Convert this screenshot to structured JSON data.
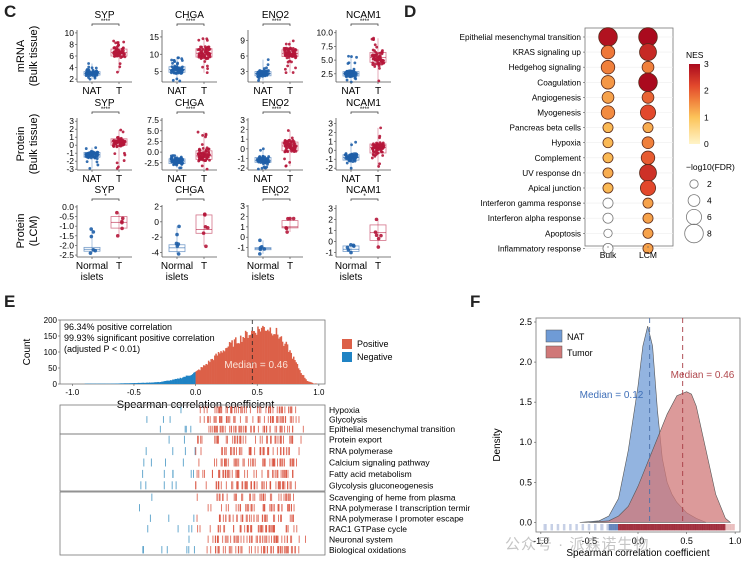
{
  "panels": {
    "c": "C",
    "d": "D",
    "e": "E",
    "f": "F"
  },
  "watermark": "公众号 · 派森诺生物",
  "chart_data": [
    {
      "id": "C",
      "type": "boxplot",
      "rows": [
        {
          "ylabel": [
            "mRNA",
            "(Bulk tissue)"
          ],
          "groups": [
            "NAT",
            "T"
          ],
          "panels": [
            {
              "title": "SYP",
              "sig": "****",
              "ylim": [
                1.5,
                10.5
              ],
              "ticks": [
                2,
                4,
                6,
                8,
                10
              ],
              "boxes": [
                {
                  "q1": 2.7,
                  "med": 3.0,
                  "q3": 3.3,
                  "lo": 2.0,
                  "hi": 4.7
                },
                {
                  "q1": 6.0,
                  "med": 6.6,
                  "q3": 7.2,
                  "lo": 3.2,
                  "hi": 8.6
                }
              ]
            },
            {
              "title": "CHGA",
              "sig": "****",
              "ylim": [
                2,
                17
              ],
              "ticks": [
                5,
                10,
                15
              ],
              "boxes": [
                {
                  "q1": 4.8,
                  "med": 5.6,
                  "q3": 6.4,
                  "lo": 2.3,
                  "hi": 9.0
                },
                {
                  "q1": 9.2,
                  "med": 10.3,
                  "q3": 11.6,
                  "lo": 4.7,
                  "hi": 14.5
                }
              ]
            },
            {
              "title": "ENO2",
              "sig": "****",
              "ylim": [
                1,
                11
              ],
              "ticks": [
                3,
                6,
                9
              ],
              "boxes": [
                {
                  "q1": 2.2,
                  "med": 2.6,
                  "q3": 3.0,
                  "lo": 1.3,
                  "hi": 5.3
                },
                {
                  "q1": 5.9,
                  "med": 6.5,
                  "q3": 7.2,
                  "lo": 2.8,
                  "hi": 8.9
                }
              ]
            },
            {
              "title": "NCAM1",
              "sig": "****",
              "ylim": [
                1,
                10.5
              ],
              "ticks": [
                2.5,
                5.0,
                7.5,
                10.0
              ],
              "boxes": [
                {
                  "q1": 2.1,
                  "med": 2.5,
                  "q3": 2.9,
                  "lo": 1.0,
                  "hi": 5.7
                },
                {
                  "q1": 4.6,
                  "med": 5.5,
                  "q3": 6.4,
                  "lo": 1.2,
                  "hi": 9.0
                }
              ]
            }
          ]
        },
        {
          "ylabel": [
            "Protein",
            "(Bulk tissue)"
          ],
          "groups": [
            "NAT",
            "T"
          ],
          "panels": [
            {
              "title": "SYP",
              "sig": "****",
              "ylim": [
                -3.1,
                3.4
              ],
              "ticks": [
                -3,
                -2,
                -1,
                0,
                1,
                2,
                3
              ],
              "boxes": [
                {
                  "q1": -1.5,
                  "med": -1.2,
                  "q3": -0.9,
                  "lo": -2.9,
                  "hi": -0.3
                },
                {
                  "q1": 0.0,
                  "med": 0.4,
                  "q3": 0.8,
                  "lo": -2.9,
                  "hi": 1.9
                }
              ]
            },
            {
              "title": "CHGA",
              "sig": "****",
              "ylim": [
                -4.2,
                8
              ],
              "ticks": [
                -2.5,
                0.0,
                2.5,
                5.0,
                7.5
              ],
              "boxes": [
                {
                  "q1": -2.7,
                  "med": -2.1,
                  "q3": -1.6,
                  "lo": -3.7,
                  "hi": -0.8
                },
                {
                  "q1": -1.7,
                  "med": -0.9,
                  "q3": 0.3,
                  "lo": -4.0,
                  "hi": 4.7
                }
              ]
            },
            {
              "title": "ENO2",
              "sig": "****",
              "ylim": [
                -2.2,
                3.2
              ],
              "ticks": [
                -2,
                -1,
                0,
                1,
                2,
                3
              ],
              "boxes": [
                {
                  "q1": -1.4,
                  "med": -1.2,
                  "q3": -0.9,
                  "lo": -2.1,
                  "hi": 0.0
                },
                {
                  "q1": -0.2,
                  "med": 0.3,
                  "q3": 0.7,
                  "lo": -1.8,
                  "hi": 1.9
                }
              ]
            },
            {
              "title": "NCAM1",
              "sig": "****",
              "ylim": [
                -2.2,
                3.6
              ],
              "ticks": [
                -2,
                -1,
                0,
                1,
                2,
                3
              ],
              "boxes": [
                {
                  "q1": -1.1,
                  "med": -0.8,
                  "q3": -0.5,
                  "lo": -2.0,
                  "hi": 0.9
                },
                {
                  "q1": -0.3,
                  "med": 0.3,
                  "q3": 0.7,
                  "lo": -1.8,
                  "hi": 2.5
                }
              ]
            }
          ]
        },
        {
          "ylabel": [
            "Protein",
            "(LCM)"
          ],
          "groups": [
            "Normal\nislets",
            "T"
          ],
          "panels": [
            {
              "title": "SYP",
              "sig": "*",
              "ylim": [
                -2.6,
                0.1
              ],
              "ticks": [
                -2.5,
                -2.0,
                -1.5,
                -1.0,
                -0.5,
                0.0
              ],
              "boxes": [
                {
                  "q1": -2.3,
                  "med": -2.2,
                  "q3": -2.1,
                  "lo": -2.4,
                  "hi": -1.15
                },
                {
                  "q1": -1.1,
                  "med": -0.8,
                  "q3": -0.5,
                  "lo": -1.5,
                  "hi": -0.3
                }
              ]
            },
            {
              "title": "CHGA",
              "sig": "*",
              "ylim": [
                -4.6,
                2.2
              ],
              "ticks": [
                -4,
                -2,
                0,
                2
              ],
              "boxes": [
                {
                  "q1": -3.9,
                  "med": -3.4,
                  "q3": -3.0,
                  "lo": -4.2,
                  "hi": -0.6
                },
                {
                  "q1": -1.5,
                  "med": -1.0,
                  "q3": 0.9,
                  "lo": -3.2,
                  "hi": 1.0
                }
              ]
            },
            {
              "title": "ENO2",
              "sig": "**",
              "ylim": [
                -1.9,
                3.1
              ],
              "ticks": [
                -1,
                0,
                1,
                2,
                3
              ],
              "boxes": [
                {
                  "q1": -1.2,
                  "med": -1.1,
                  "q3": -1.0,
                  "lo": -1.6,
                  "hi": -0.3
                },
                {
                  "q1": 0.9,
                  "med": 1.0,
                  "q3": 1.6,
                  "lo": 0.5,
                  "hi": 1.8
                }
              ]
            },
            {
              "title": "NCAM1",
              "sig": "*",
              "ylim": [
                -1.4,
                3.3
              ],
              "ticks": [
                -1,
                0,
                1,
                2,
                3
              ],
              "boxes": [
                {
                  "q1": -0.9,
                  "med": -0.7,
                  "q3": -0.4,
                  "lo": -1.0,
                  "hi": -0.3
                },
                {
                  "q1": 0.1,
                  "med": 0.8,
                  "q3": 1.5,
                  "lo": -0.5,
                  "hi": 2.0
                }
              ]
            }
          ]
        }
      ],
      "colors": {
        "nat": "#1f5fa8",
        "t": "#b5163a"
      }
    },
    {
      "id": "D",
      "type": "dot",
      "categories": [
        "Epithelial mesenchymal transition",
        "KRAS signaling up",
        "Hedgehog signaling",
        "Coagulation",
        "Angiogenesis",
        "Myogenesis",
        "Pancreas beta cells",
        "Hypoxia",
        "Complement",
        "UV response dn",
        "Apical junction",
        "Interferon gamma response",
        "Interferon alpha response",
        "Apoptosis",
        "Inflammatory response"
      ],
      "columns": [
        "Bulk",
        "LCM"
      ],
      "nes": {
        "Bulk": [
          2.9,
          1.7,
          1.6,
          1.4,
          1.3,
          1.5,
          1.1,
          1.1,
          1.1,
          1.2,
          1.1,
          null,
          null,
          null,
          null
        ],
        "LCM": [
          3.0,
          2.6,
          1.6,
          3.0,
          1.9,
          2.2,
          1.2,
          1.6,
          2.0,
          2.5,
          2.2,
          1.3,
          1.3,
          1.3,
          1.3
        ]
      },
      "fdr": {
        "Bulk": [
          8,
          5,
          5,
          5,
          4,
          5,
          3,
          3,
          3,
          3,
          3,
          3,
          3,
          2,
          3
        ],
        "LCM": [
          8,
          7,
          4,
          8,
          4,
          6,
          3,
          4,
          5,
          7,
          6,
          3,
          3,
          3,
          3
        ]
      },
      "legend": {
        "nes_title": "NES",
        "nes_ticks": [
          0,
          1,
          2,
          3
        ],
        "nes_range": [
          0,
          3
        ],
        "fdr_title": "−log10(FDR)",
        "fdr_sizes": [
          2,
          4,
          6,
          8
        ]
      }
    },
    {
      "id": "E",
      "type": "histogram",
      "xlabel": "Spearman correlation coefficient",
      "ylabel": "Count",
      "xlim": [
        -1.1,
        1.05
      ],
      "ylim": [
        0,
        200
      ],
      "xticks": [
        -1.0,
        -0.5,
        0.0,
        0.5,
        1.0
      ],
      "yticks": [
        0,
        50,
        100,
        150,
        200
      ],
      "annotations": [
        "96.34% positive correlation",
        "99.93% significant positive correlation",
        "(adjusted P < 0.01)"
      ],
      "median_label": "Median = 0.46",
      "median": 0.46,
      "legend": [
        {
          "name": "Positive",
          "color": "#dc6048"
        },
        {
          "name": "Negative",
          "color": "#1f83c4"
        }
      ],
      "bins_x": [
        -0.9,
        -0.8,
        -0.7,
        -0.6,
        -0.5,
        -0.4,
        -0.3,
        -0.25,
        -0.2,
        -0.15,
        -0.1,
        -0.05,
        0.0,
        0.05,
        0.1,
        0.15,
        0.2,
        0.25,
        0.3,
        0.35,
        0.4,
        0.45,
        0.5,
        0.55,
        0.6,
        0.65,
        0.7,
        0.75,
        0.8,
        0.85,
        0.9,
        0.95
      ],
      "bins_y": [
        1,
        1,
        1,
        2,
        3,
        4,
        6,
        9,
        12,
        16,
        22,
        28,
        38,
        52,
        68,
        84,
        100,
        115,
        128,
        140,
        152,
        162,
        170,
        176,
        172,
        160,
        138,
        108,
        72,
        36,
        10,
        2
      ],
      "rug_groups": [
        {
          "terms": [
            "Hypoxia",
            "Glycolysis",
            "Epithelial mesenchymal transition"
          ]
        },
        {
          "terms": [
            "Protein export",
            "RNA polymerase",
            "Calcium signaling pathway",
            "Fatty acid metabolism",
            "Glycolysis gluconeogenesis"
          ]
        },
        {
          "terms": [
            "Scavenging of heme from plasma",
            "RNA polymerase I transcription termination",
            "RNA polymerase I promoter escape",
            "RAC1 GTPase cycle",
            "Neuronal system",
            "Biological oxidations"
          ]
        }
      ]
    },
    {
      "id": "F",
      "type": "area",
      "xlabel": "Spearman correlation coefficient",
      "ylabel": "Density",
      "xlim": [
        -1.05,
        1.05
      ],
      "ylim": [
        -0.12,
        2.55
      ],
      "xticks": [
        -1.0,
        -0.5,
        0.0,
        0.5,
        1.0
      ],
      "yticks": [
        0.0,
        0.5,
        1.0,
        1.5,
        2.0,
        2.5
      ],
      "series": [
        {
          "name": "NAT",
          "color": "#6f9bd6",
          "median": 0.12,
          "median_label": "Median = 0.12",
          "x": [
            -0.6,
            -0.4,
            -0.3,
            -0.2,
            -0.1,
            0.0,
            0.05,
            0.1,
            0.15,
            0.2,
            0.25,
            0.3,
            0.35,
            0.4,
            0.5,
            0.6,
            0.7
          ],
          "y": [
            0.0,
            0.02,
            0.08,
            0.3,
            0.9,
            1.7,
            2.2,
            2.45,
            2.2,
            1.4,
            0.8,
            0.5,
            0.35,
            0.25,
            0.12,
            0.05,
            0.0
          ]
        },
        {
          "name": "Tumor",
          "color": "#d07878",
          "median": 0.46,
          "median_label": "Median = 0.46",
          "x": [
            -0.5,
            -0.3,
            -0.2,
            -0.1,
            0.0,
            0.1,
            0.2,
            0.3,
            0.4,
            0.5,
            0.55,
            0.6,
            0.7,
            0.8,
            0.9,
            0.95
          ],
          "y": [
            0.0,
            0.02,
            0.08,
            0.2,
            0.45,
            0.75,
            1.05,
            1.35,
            1.58,
            1.63,
            1.6,
            1.45,
            0.9,
            0.35,
            0.05,
            0.0
          ]
        }
      ],
      "legend_position": "top-left"
    }
  ]
}
